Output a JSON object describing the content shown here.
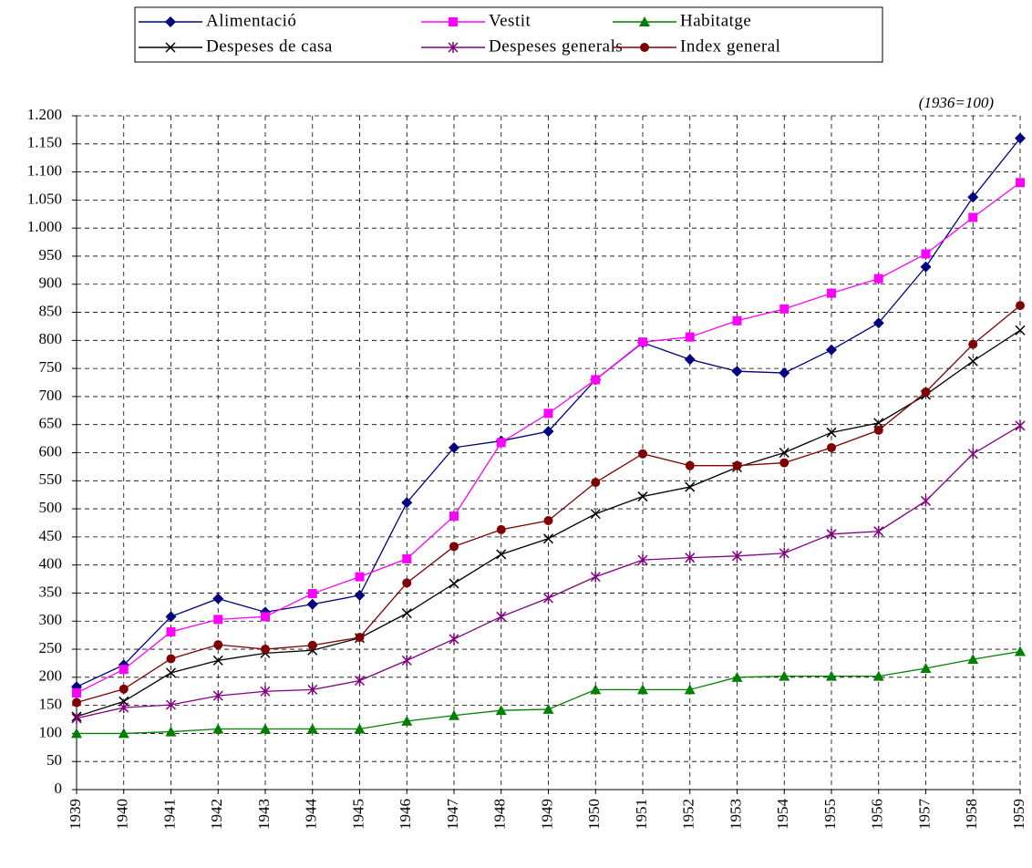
{
  "chart_data": {
    "type": "line",
    "annotation": "(1936=100)",
    "categories": [
      "1939",
      "1940",
      "1941",
      "1942",
      "1943",
      "1944",
      "1945",
      "1946",
      "1947",
      "1948",
      "1949",
      "1950",
      "1951",
      "1952",
      "1953",
      "1954",
      "1955",
      "1956",
      "1957",
      "1958",
      "1959"
    ],
    "series": [
      {
        "name": "Alimentació",
        "color": "#000080",
        "marker": "diamond",
        "values": [
          183,
          222,
          308,
          340,
          316,
          330,
          346,
          511,
          609,
          621,
          638,
          730,
          796,
          766,
          745,
          742,
          783,
          831,
          931,
          1055,
          1160
        ]
      },
      {
        "name": "Vestit",
        "color": "#ff00ff",
        "marker": "square",
        "values": [
          172,
          214,
          281,
          303,
          308,
          349,
          379,
          411,
          487,
          618,
          670,
          730,
          797,
          806,
          835,
          856,
          884,
          910,
          954,
          1019,
          1081
        ]
      },
      {
        "name": "Habitatge",
        "color": "#008000",
        "marker": "triangle",
        "values": [
          100,
          100,
          103,
          108,
          108,
          108,
          108,
          122,
          132,
          141,
          143,
          178,
          178,
          178,
          200,
          202,
          202,
          202,
          216,
          232,
          246
        ]
      },
      {
        "name": "Despeses de casa",
        "color": "#000000",
        "marker": "x",
        "values": [
          130,
          157,
          208,
          230,
          243,
          248,
          270,
          314,
          367,
          419,
          447,
          491,
          522,
          539,
          574,
          600,
          636,
          653,
          703,
          763,
          818
        ]
      },
      {
        "name": "Despeses generals",
        "color": "#800080",
        "marker": "star",
        "values": [
          127,
          146,
          151,
          167,
          175,
          178,
          194,
          230,
          268,
          308,
          341,
          379,
          409,
          413,
          416,
          421,
          455,
          460,
          514,
          598,
          648
        ]
      },
      {
        "name": "Index general",
        "color": "#800000",
        "marker": "circle",
        "values": [
          155,
          179,
          233,
          258,
          250,
          257,
          271,
          368,
          433,
          463,
          479,
          547,
          598,
          577,
          577,
          582,
          609,
          640,
          708,
          793,
          862
        ]
      }
    ],
    "ylim": [
      0,
      1200
    ],
    "yticks": [
      0,
      50,
      100,
      150,
      200,
      250,
      300,
      350,
      400,
      450,
      500,
      550,
      600,
      650,
      700,
      750,
      800,
      850,
      900,
      950,
      {
        "value": 1000,
        "label": "1.000"
      },
      {
        "value": 1050,
        "label": "1.050"
      },
      {
        "value": 1100,
        "label": "1.100"
      },
      {
        "value": 1150,
        "label": "1.150"
      },
      {
        "value": 1200,
        "label": "1.200"
      }
    ],
    "grid": true,
    "legend": "top"
  }
}
